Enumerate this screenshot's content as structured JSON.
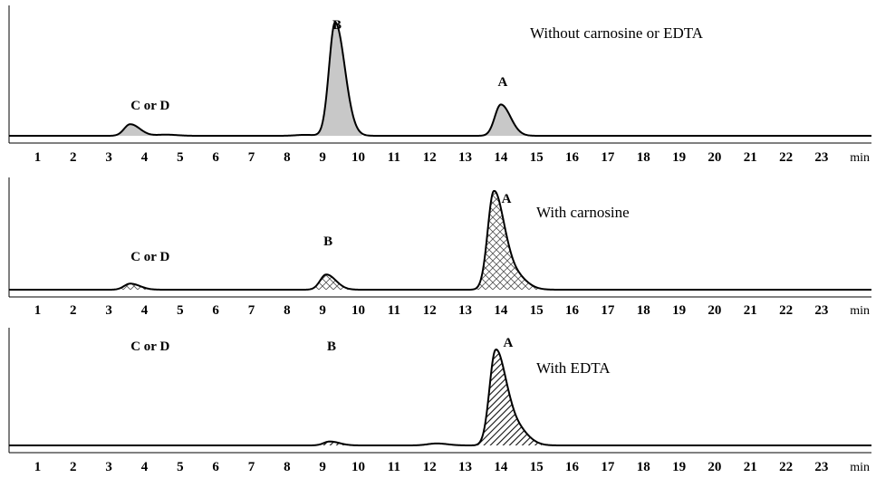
{
  "chart_data": [
    {
      "type": "line",
      "title": "Without carnosine or EDTA",
      "xlabel": "min",
      "x_ticks": [
        1,
        2,
        3,
        4,
        5,
        6,
        7,
        8,
        9,
        10,
        11,
        12,
        13,
        14,
        15,
        16,
        17,
        18,
        19,
        20,
        21,
        22,
        23
      ],
      "xlim": [
        0.2,
        24.4
      ],
      "fill": "gray",
      "peaks": [
        {
          "label": "C or D",
          "x": 3.6,
          "height": 0.1
        },
        {
          "label": "B",
          "x": 9.35,
          "height": 0.98
        },
        {
          "label": "A",
          "x": 14.0,
          "height": 0.27
        }
      ]
    },
    {
      "type": "line",
      "title": "With carnosine",
      "xlabel": "min",
      "x_ticks": [
        1,
        2,
        3,
        4,
        5,
        6,
        7,
        8,
        9,
        10,
        11,
        12,
        13,
        14,
        15,
        16,
        17,
        18,
        19,
        20,
        21,
        22,
        23
      ],
      "xlim": [
        0.2,
        24.4
      ],
      "fill": "crosshatch",
      "peaks": [
        {
          "label": "C or D",
          "x": 3.6,
          "height": 0.06
        },
        {
          "label": "B",
          "x": 9.1,
          "height": 0.15
        },
        {
          "label": "A",
          "x": 13.8,
          "height": 0.95
        }
      ]
    },
    {
      "type": "line",
      "title": "With EDTA",
      "xlabel": "min",
      "x_ticks": [
        1,
        2,
        3,
        4,
        5,
        6,
        7,
        8,
        9,
        10,
        11,
        12,
        13,
        14,
        15,
        16,
        17,
        18,
        19,
        20,
        21,
        22,
        23
      ],
      "xlim": [
        0.2,
        24.4
      ],
      "fill": "diagonal-hatch",
      "peaks": [
        {
          "label": "C or D",
          "x": 3.6,
          "height": 0.0
        },
        {
          "label": "B",
          "x": 9.2,
          "height": 0.04
        },
        {
          "label": "A",
          "x": 13.85,
          "height": 0.95
        }
      ]
    }
  ]
}
